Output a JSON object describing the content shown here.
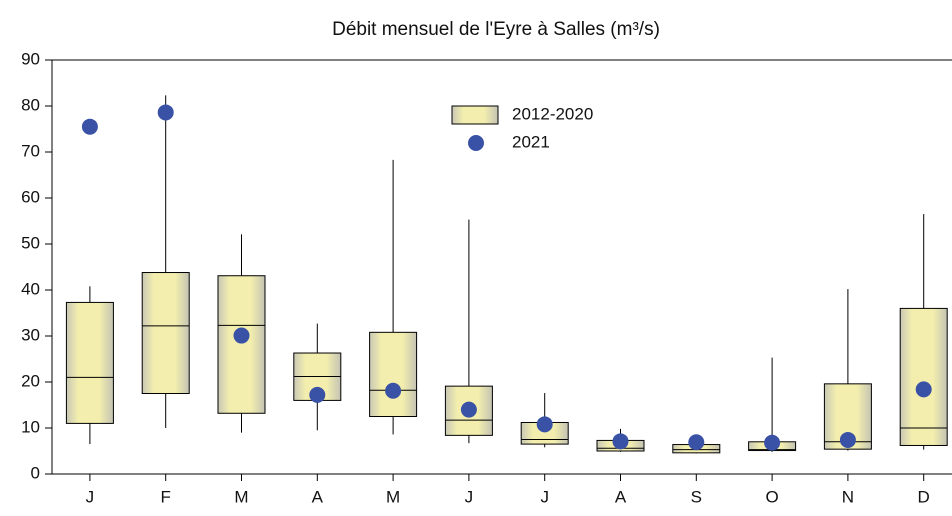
{
  "chart_data": {
    "type": "box",
    "title": "Débit mensuel de l'Eyre à Salles (m³/s)",
    "categories": [
      "J",
      "F",
      "M",
      "A",
      "M",
      "J",
      "J",
      "A",
      "S",
      "O",
      "N",
      "D"
    ],
    "ylim": [
      0,
      90
    ],
    "yticks": [
      0,
      10,
      20,
      30,
      40,
      50,
      60,
      70,
      80,
      90
    ],
    "series": [
      {
        "name": "2012-2020",
        "type": "box",
        "color": "#f3eeae",
        "min": [
          6.5,
          10,
          9,
          9.5,
          8.6,
          6.7,
          5.8,
          4.8,
          4.5,
          4.8,
          5.1,
          5.3
        ],
        "q1": [
          11,
          17.5,
          13.2,
          16,
          12.5,
          8.4,
          6.5,
          5,
          4.6,
          5.1,
          5.4,
          6.2
        ],
        "median": [
          21,
          32.2,
          32.3,
          21.2,
          18.2,
          11.7,
          7.5,
          5.6,
          5.3,
          5.3,
          7,
          10
        ],
        "q3": [
          37.3,
          43.8,
          43.1,
          26.3,
          30.8,
          19.1,
          11.2,
          7.3,
          6.4,
          7,
          19.6,
          36
        ],
        "max": [
          40.8,
          82.3,
          52.1,
          32.7,
          68.3,
          55.3,
          17.6,
          9.8,
          6.4,
          25.3,
          40.2,
          56.5
        ]
      },
      {
        "name": "2021",
        "type": "scatter",
        "color": "#3a52a6",
        "values": [
          75.5,
          78.6,
          30.1,
          17.2,
          18.1,
          14,
          10.8,
          7.1,
          6.9,
          6.8,
          7.4,
          18.4
        ]
      }
    ]
  }
}
